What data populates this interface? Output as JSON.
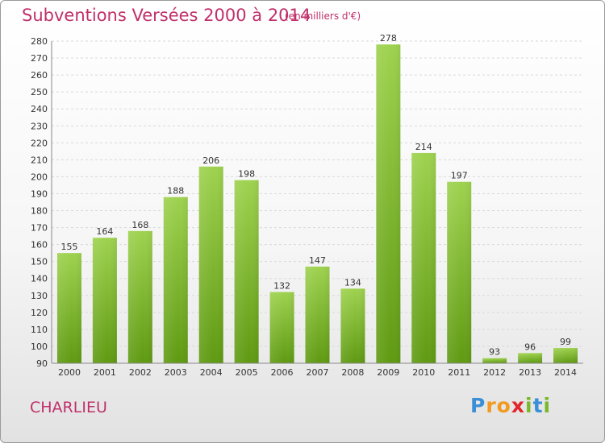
{
  "chart_data": {
    "type": "bar",
    "title": "Subventions Versées 2000 à 2014",
    "subtitle": "(en milliers d'€)",
    "categories": [
      "2000",
      "2001",
      "2002",
      "2003",
      "2004",
      "2005",
      "2006",
      "2007",
      "2008",
      "2009",
      "2010",
      "2011",
      "2012",
      "2013",
      "2014"
    ],
    "values": [
      155,
      164,
      168,
      188,
      206,
      198,
      132,
      147,
      134,
      278,
      214,
      197,
      93,
      96,
      99
    ],
    "ylim": [
      90,
      280
    ],
    "yticks": [
      90,
      100,
      110,
      120,
      130,
      140,
      150,
      160,
      170,
      180,
      190,
      200,
      210,
      220,
      230,
      240,
      250,
      260,
      270,
      280
    ],
    "grid": true,
    "colors": {
      "bar_top": "#9ed24f",
      "bar_bottom": "#5f9a12",
      "accent": "#c0306a"
    }
  },
  "footer": {
    "town": "CHARLIEU",
    "logo_letters": [
      {
        "ch": "P",
        "color": "#3a8fd6"
      },
      {
        "ch": "r",
        "color": "#f29a1f"
      },
      {
        "ch": "o",
        "color": "#f29a1f"
      },
      {
        "ch": "x",
        "color": "#e2262a"
      },
      {
        "ch": "i",
        "color": "#79b82a"
      },
      {
        "ch": "t",
        "color": "#3a8fd6"
      },
      {
        "ch": "i",
        "color": "#79b82a"
      }
    ]
  }
}
